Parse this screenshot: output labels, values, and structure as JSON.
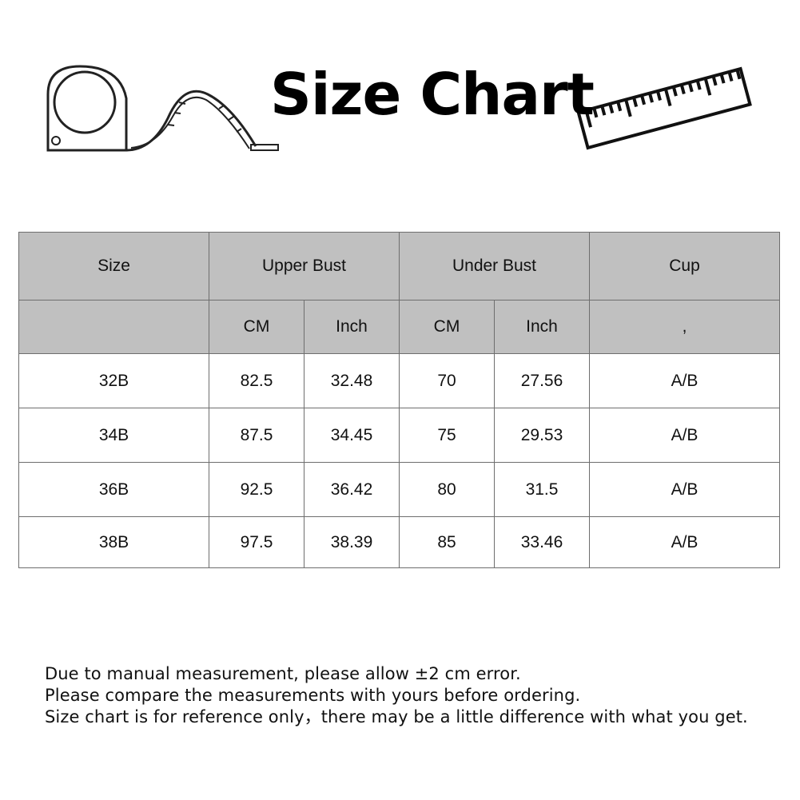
{
  "title": "Size Chart",
  "icons": [
    "tape-measure-icon",
    "ruler-icon"
  ],
  "table": {
    "header_row1": [
      "Size",
      "Upper Bust",
      "Under Bust",
      "Cup"
    ],
    "header_row2": [
      "CM",
      "Inch",
      "CM",
      "Inch",
      ","
    ],
    "header_bg": "#c0c0c0",
    "rows": [
      [
        "32B",
        "82.5",
        "32.48",
        "70",
        "27.56",
        "A/B"
      ],
      [
        "34B",
        "87.5",
        "34.45",
        "75",
        "29.53",
        "A/B"
      ],
      [
        "36B",
        "92.5",
        "36.42",
        "80",
        "31.5",
        "A/B"
      ],
      [
        "38B",
        "97.5",
        "38.39",
        "85",
        "33.46",
        "A/B"
      ]
    ]
  },
  "notes": [
    "Due to manual measurement, please allow ±2 cm error.",
    "Please compare the measurements with yours before ordering.",
    "Size chart is for reference only，there may be a little difference with what you get."
  ]
}
